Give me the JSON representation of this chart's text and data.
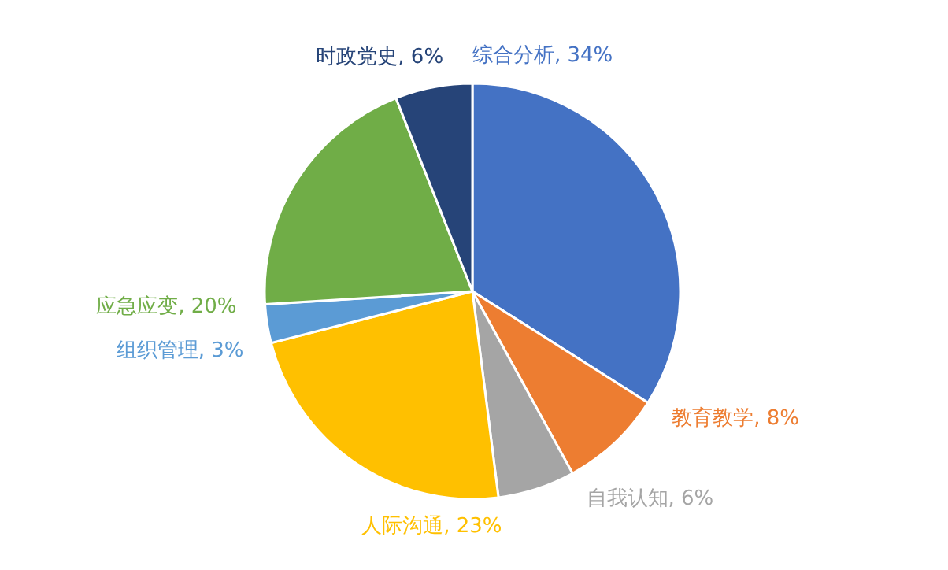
{
  "chart_data": {
    "type": "pie",
    "categories": [
      "综合分析",
      "教育教学",
      "自我认知",
      "人际沟通",
      "组织管理",
      "应急应变",
      "时政党史"
    ],
    "values": [
      34,
      8,
      6,
      23,
      3,
      20,
      6
    ],
    "value_labels": [
      "34%",
      "8%",
      "6%",
      "23%",
      "3%",
      "20%",
      "6%"
    ],
    "colors": [
      "#4472c4",
      "#ed7d31",
      "#a5a5a5",
      "#ffc000",
      "#5b9bd5",
      "#70ad47",
      "#264478"
    ]
  }
}
